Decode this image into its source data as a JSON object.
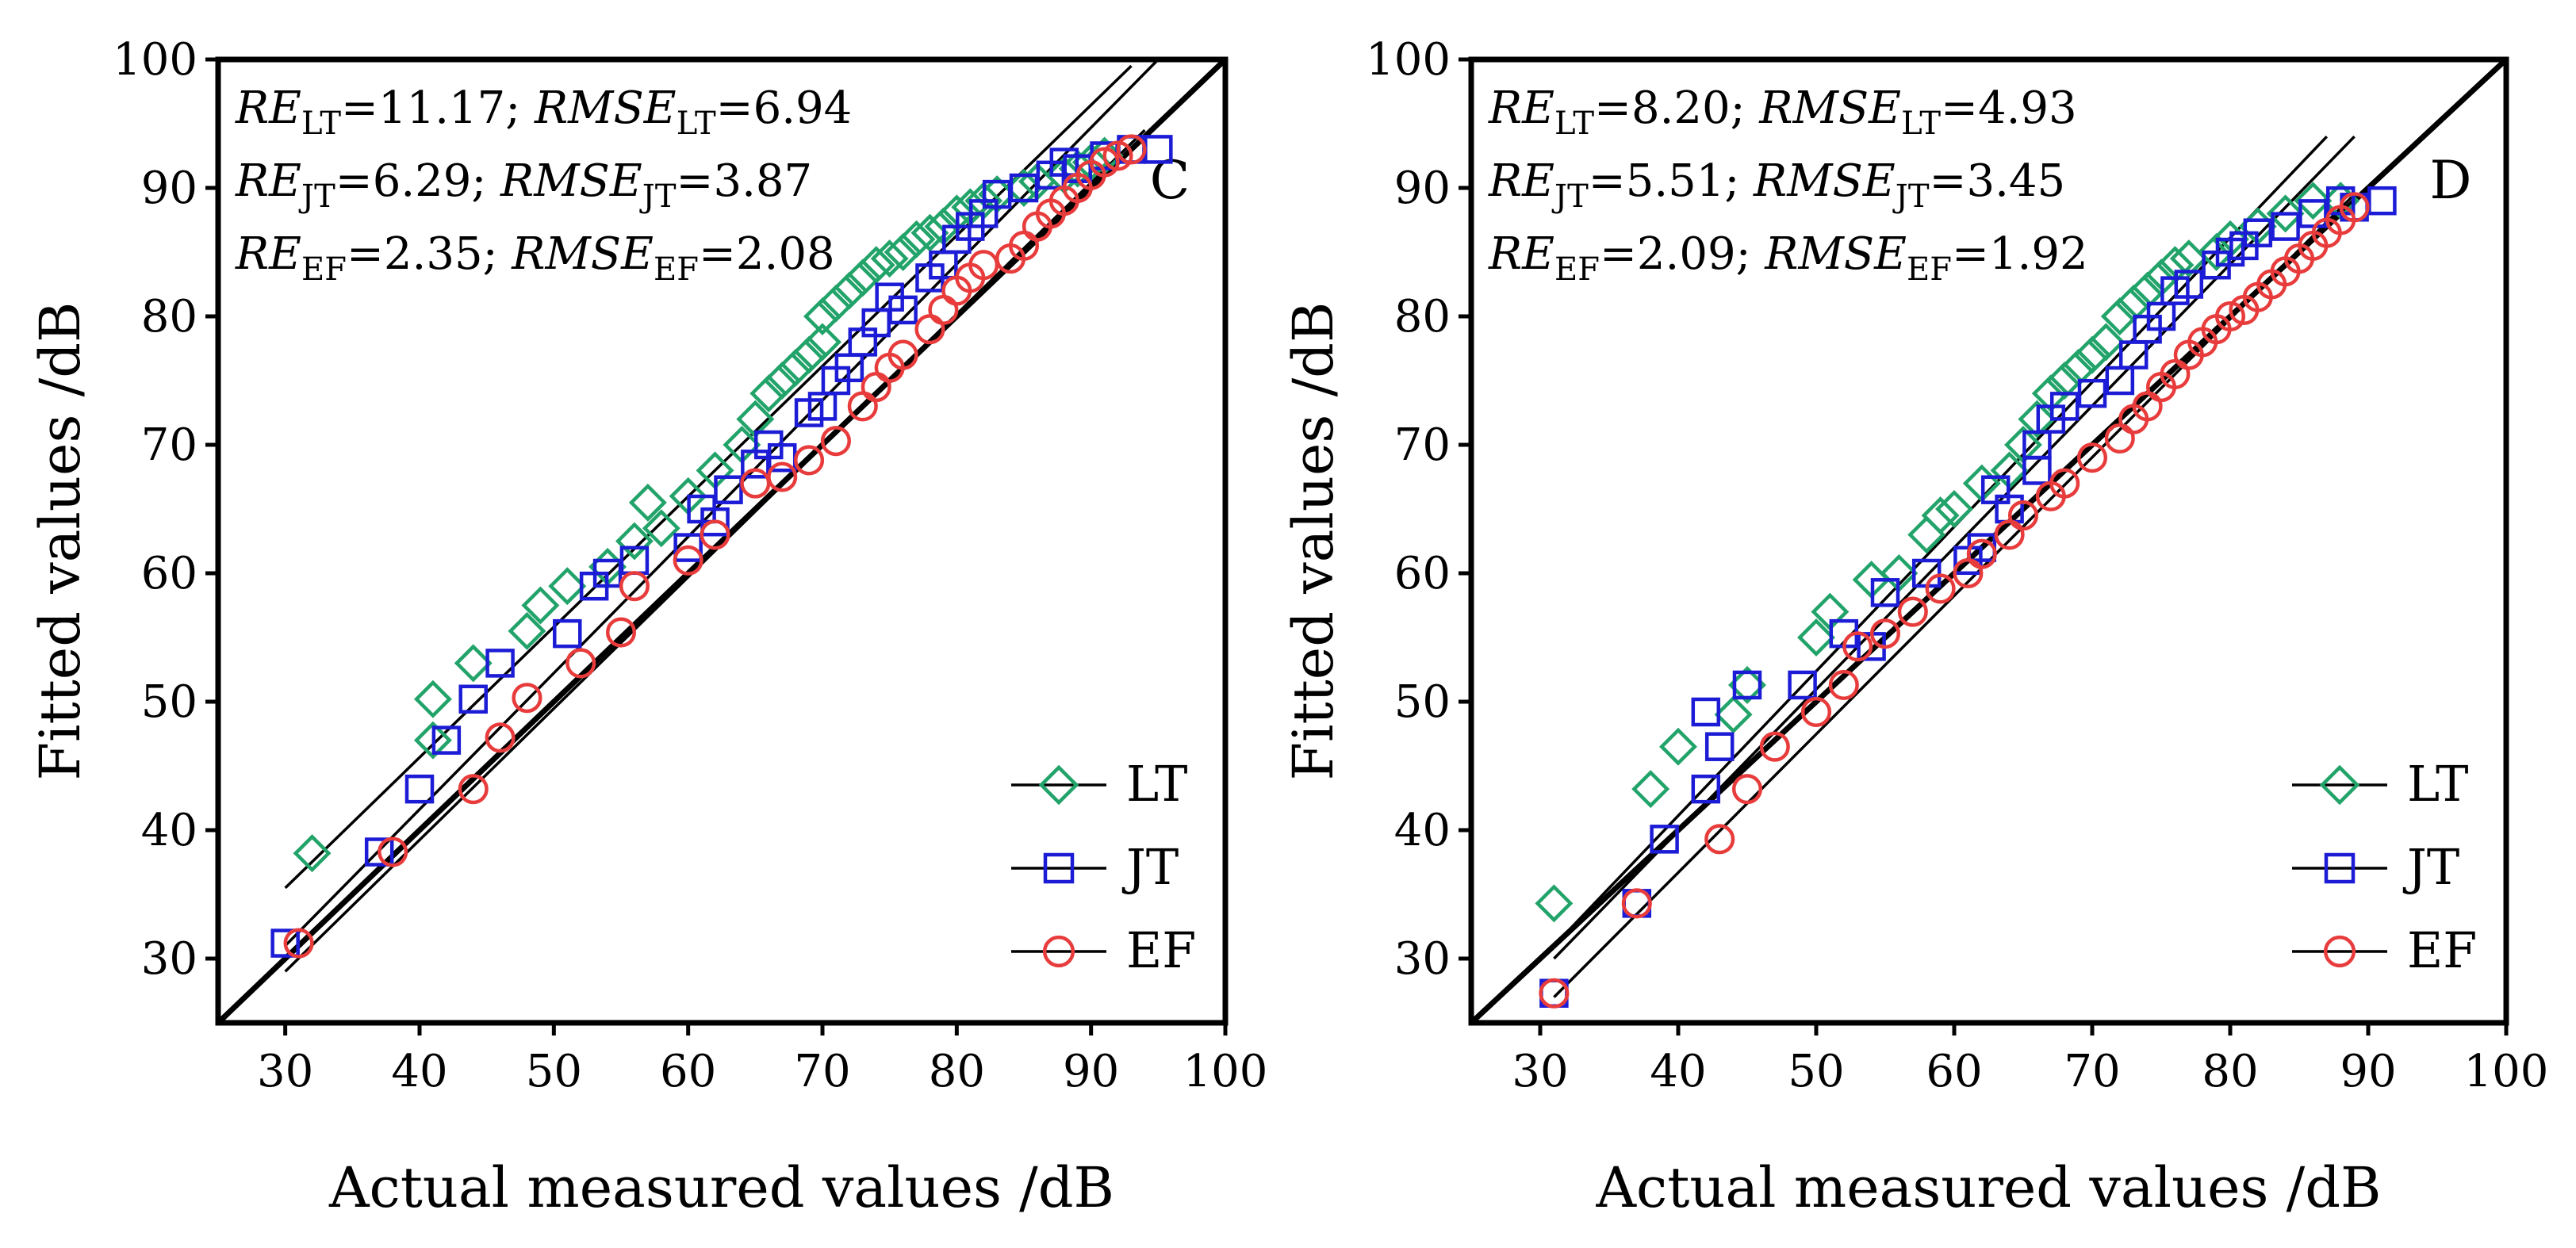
{
  "chart_data": [
    {
      "type": "scatter",
      "panel_label": "C",
      "xlabel": "Actual measured values /dB",
      "ylabel": "Fitted values /dB",
      "xlim": [
        25,
        100
      ],
      "ylim": [
        25,
        100
      ],
      "xticks": [
        30,
        40,
        50,
        60,
        70,
        80,
        90,
        100
      ],
      "yticks": [
        30,
        40,
        50,
        60,
        70,
        80,
        90,
        100
      ],
      "legend_position": "bottom-right",
      "stats": [
        {
          "re_label": "RE",
          "sub": "LT",
          "re_value": "=11.17; ",
          "rmse_label": "RMSE",
          "rmse_value": "=6.94"
        },
        {
          "re_label": "RE",
          "sub": "JT",
          "re_value": "=6.29; ",
          "rmse_label": "RMSE",
          "rmse_value": "=3.87"
        },
        {
          "re_label": "RE",
          "sub": "EF",
          "re_value": "=2.35; ",
          "rmse_label": "RMSE",
          "rmse_value": "=2.08"
        }
      ],
      "reference_line": {
        "name": "1:1",
        "x": [
          25,
          100
        ],
        "y": [
          25,
          100
        ]
      },
      "series": [
        {
          "name": "LT",
          "marker": "diamond",
          "color": "#22a36a",
          "fit": {
            "x": [
              30,
              93
            ],
            "y": [
              35.5,
              99.5
            ]
          },
          "x": [
            32,
            41,
            41,
            44,
            48,
            49,
            51,
            54,
            56,
            57,
            58,
            60,
            62,
            64,
            65,
            66,
            67,
            68,
            69,
            70,
            70,
            71,
            72,
            73,
            74,
            75,
            76,
            77,
            78,
            79,
            80,
            81,
            82,
            83,
            85,
            86,
            88,
            89,
            90,
            91
          ],
          "y": [
            38.2,
            47,
            50.2,
            53,
            55.5,
            57.5,
            59,
            60.5,
            62.5,
            65.5,
            63.5,
            66,
            68,
            70,
            72,
            74,
            75,
            76,
            77,
            78,
            80,
            81,
            82,
            83,
            84,
            84.5,
            85,
            86,
            86.5,
            87,
            88,
            88.5,
            89,
            89.5,
            90,
            90.5,
            91,
            91.5,
            92,
            92.5
          ]
        },
        {
          "name": "JT",
          "marker": "square",
          "color": "#1c1cd6",
          "fit": {
            "x": [
              30,
              95
            ],
            "y": [
              31,
              100
            ]
          },
          "x": [
            30,
            37,
            40,
            42,
            44,
            46,
            51,
            53,
            54,
            56,
            60,
            61,
            62,
            63,
            65,
            66,
            67,
            69,
            70,
            71,
            72,
            73,
            74,
            75,
            76,
            78,
            79,
            80,
            81,
            82,
            83,
            85,
            87,
            88,
            89,
            91,
            93,
            95
          ],
          "y": [
            31.2,
            38.3,
            43.2,
            47,
            50.2,
            53,
            55.3,
            59,
            60,
            61,
            62,
            65,
            64,
            66.5,
            68.5,
            70,
            69,
            72.5,
            73,
            75,
            76,
            78,
            79.5,
            81.5,
            80.5,
            83,
            84,
            86,
            87,
            88,
            89.5,
            90,
            91,
            92,
            91.5,
            92.5,
            93,
            93
          ]
        },
        {
          "name": "EF",
          "marker": "circle",
          "color": "#e83c3c",
          "fit": {
            "x": [
              30,
              94
            ],
            "y": [
              29,
              94.5
            ]
          },
          "x": [
            31,
            38,
            44,
            46,
            48,
            52,
            55,
            56,
            60,
            62,
            65,
            67,
            69,
            71,
            73,
            74,
            75,
            76,
            78,
            79,
            80,
            81,
            82,
            84,
            85,
            86,
            87,
            88,
            89,
            90,
            91,
            92,
            93
          ],
          "y": [
            31.2,
            38.3,
            43.2,
            47.2,
            50.3,
            53,
            55.4,
            59,
            61,
            63,
            67,
            67.5,
            68.8,
            70.3,
            73,
            74.5,
            76,
            77,
            79,
            80.5,
            82,
            83,
            84,
            84.5,
            85.5,
            87,
            88,
            89,
            90,
            91,
            92,
            92.5,
            93
          ]
        }
      ],
      "legend": [
        "LT",
        "JT",
        "EF"
      ]
    },
    {
      "type": "scatter",
      "panel_label": "D",
      "xlabel": "Actual measured values /dB",
      "ylabel": "Fitted values /dB",
      "xlim": [
        25,
        100
      ],
      "ylim": [
        25,
        100
      ],
      "xticks": [
        30,
        40,
        50,
        60,
        70,
        80,
        90,
        100
      ],
      "yticks": [
        30,
        40,
        50,
        60,
        70,
        80,
        90,
        100
      ],
      "legend_position": "bottom-right",
      "stats": [
        {
          "re_label": "RE",
          "sub": "LT",
          "re_value": "=8.20; ",
          "rmse_label": "RMSE",
          "rmse_value": "=4.93"
        },
        {
          "re_label": "RE",
          "sub": "JT",
          "re_value": "=5.51; ",
          "rmse_label": "RMSE",
          "rmse_value": "=3.45"
        },
        {
          "re_label": "RE",
          "sub": "EF",
          "re_value": "=2.09; ",
          "rmse_label": "RMSE",
          "rmse_value": "=1.92"
        }
      ],
      "reference_line": {
        "name": "1:1",
        "x": [
          25,
          100
        ],
        "y": [
          25,
          100
        ]
      },
      "series": [
        {
          "name": "LT",
          "marker": "diamond",
          "color": "#22a36a",
          "fit": {
            "x": [
              31,
              87
            ],
            "y": [
              31,
              94
            ]
          },
          "x": [
            31,
            38,
            40,
            44,
            45,
            50,
            51,
            54,
            56,
            58,
            59,
            60,
            62,
            64,
            65,
            66,
            67,
            68,
            69,
            70,
            71,
            72,
            73,
            74,
            75,
            76,
            77,
            79,
            80,
            82,
            84,
            86,
            88
          ],
          "y": [
            34.3,
            43.2,
            46.5,
            49,
            51.3,
            55,
            57,
            59.5,
            60,
            63,
            64.5,
            65,
            67,
            68,
            70,
            72,
            74,
            75,
            76,
            77,
            78,
            80,
            81,
            82,
            83,
            84,
            84.5,
            85,
            86,
            87,
            88,
            89,
            89
          ]
        },
        {
          "name": "JT",
          "marker": "square",
          "color": "#1c1cd6",
          "fit": {
            "x": [
              31,
              89
            ],
            "y": [
              30,
              94
            ]
          },
          "x": [
            31,
            37,
            39,
            42,
            42,
            43,
            45,
            49,
            52,
            54,
            55,
            58,
            61,
            62,
            63,
            64,
            66,
            66,
            67,
            68,
            70,
            72,
            73,
            74,
            75,
            76,
            77,
            79,
            80,
            81,
            82,
            84,
            86,
            88,
            89,
            91
          ],
          "y": [
            27.3,
            34.3,
            39.3,
            43.2,
            49.2,
            46.5,
            51.3,
            51.3,
            55.3,
            54.3,
            58.5,
            60,
            61,
            62,
            66.5,
            65,
            68,
            70,
            72,
            73,
            74,
            75,
            77,
            79,
            80,
            82,
            82.5,
            84,
            85,
            85.5,
            86.5,
            87,
            88,
            89,
            88.5,
            89
          ]
        },
        {
          "name": "EF",
          "marker": "circle",
          "color": "#e83c3c",
          "fit": {
            "x": [
              31,
              89
            ],
            "y": [
              27,
              89.5
            ]
          },
          "x": [
            31,
            37,
            43,
            45,
            47,
            50,
            52,
            53,
            55,
            57,
            59,
            61,
            62,
            64,
            65,
            67,
            68,
            70,
            72,
            73,
            74,
            75,
            76,
            77,
            78,
            79,
            80,
            81,
            82,
            83,
            84,
            85,
            86,
            87,
            88,
            89
          ],
          "y": [
            27.3,
            34.3,
            39.3,
            43.2,
            46.5,
            49.2,
            51.3,
            54.3,
            55.3,
            57,
            58.8,
            60,
            61.5,
            63,
            64.5,
            66,
            67,
            69,
            70.5,
            72,
            73,
            74.5,
            75.5,
            77,
            78,
            79,
            80,
            80.5,
            81.5,
            82.5,
            83.5,
            84.5,
            85.5,
            86.5,
            87.5,
            88.5
          ]
        }
      ],
      "legend": [
        "LT",
        "JT",
        "EF"
      ]
    }
  ]
}
